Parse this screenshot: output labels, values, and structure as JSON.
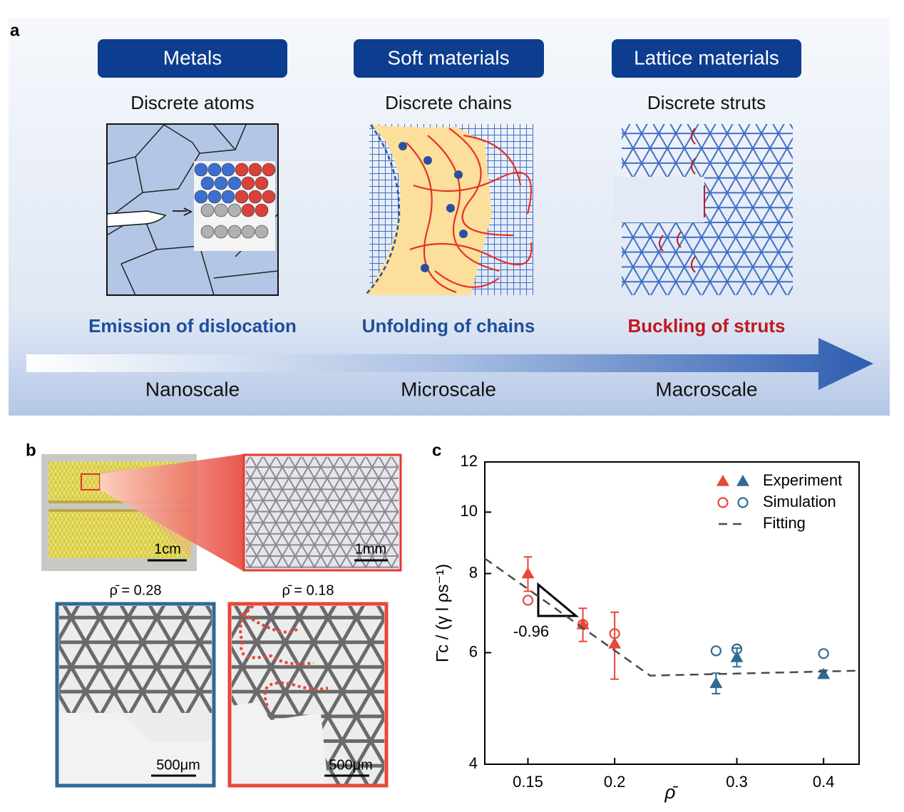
{
  "panel_a": {
    "label": "a",
    "columns": [
      {
        "header": "Metals",
        "subtitle": "Discrete atoms",
        "mechanism": "Emission of dislocation",
        "mechanism_color": "#1f4e9c"
      },
      {
        "header": "Soft materials",
        "subtitle": "Discrete chains",
        "mechanism": "Unfolding of chains",
        "mechanism_color": "#1f4e9c"
      },
      {
        "header": "Lattice materials",
        "subtitle": "Discrete struts",
        "mechanism": "Buckling of struts",
        "mechanism_color": "#c0181f"
      }
    ],
    "scales": [
      "Nanoscale",
      "Microscale",
      "Macroscale"
    ]
  },
  "panel_b": {
    "label": "b",
    "scale_bars": [
      "1cm",
      "1mm"
    ],
    "density_labels": [
      "ρ̄ = 0.28",
      "ρ̄ = 0.18"
    ],
    "image_scale_bars": [
      "500μm",
      "500μm"
    ]
  },
  "chart_data": {
    "type": "scatter",
    "panel_label": "c",
    "xlabel": "ρ̄",
    "ylabel": "Γ̄c / (γ l ρs⁻¹)",
    "xscale": "log",
    "yscale": "log",
    "xlim": [
      0.13,
      0.45
    ],
    "ylim": [
      4,
      12
    ],
    "xticks": [
      0.15,
      0.2,
      0.3,
      0.4
    ],
    "yticks": [
      4,
      6,
      8,
      10,
      12
    ],
    "legend": "upper right",
    "annotation": "-0.96",
    "series": [
      {
        "name": "Experiment",
        "marker": "triangle",
        "colors": [
          "#e8473a",
          "#e8473a",
          "#e8473a",
          "#2e6a94",
          "#2e6a94",
          "#2e6a94"
        ],
        "x": [
          0.15,
          0.18,
          0.2,
          0.28,
          0.3,
          0.4
        ],
        "values": [
          8.0,
          6.65,
          6.2,
          5.37,
          5.9,
          5.55
        ],
        "errors": [
          0.5,
          0.4,
          0.75,
          0.2,
          0.2,
          0.08
        ]
      },
      {
        "name": "Simulation",
        "marker": "open-circle",
        "colors": [
          "#e8473a",
          "#e8473a",
          "#e8473a",
          "#2e6a94",
          "#2e6a94",
          "#2e6a94"
        ],
        "x": [
          0.15,
          0.18,
          0.2,
          0.28,
          0.3,
          0.4
        ],
        "values": [
          7.26,
          6.65,
          6.43,
          6.04,
          6.08,
          5.98
        ]
      },
      {
        "name": "Fitting",
        "marker": "dashed-line",
        "color": "#4a4a4a",
        "x": [
          0.13,
          0.225,
          0.45
        ],
        "values": [
          8.45,
          5.52,
          5.62
        ]
      }
    ]
  }
}
